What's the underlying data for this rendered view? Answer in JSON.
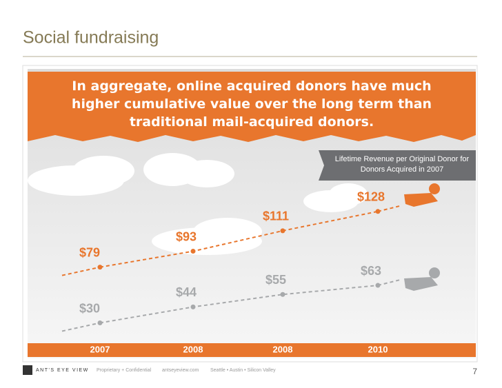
{
  "title": "Social fundraising",
  "chart_data": {
    "type": "line",
    "title": "In aggregate, online acquired donors have much higher cumulative value over the long term than traditional mail-acquired donors.",
    "legend_text": "Lifetime Revenue per Original Donor for Donors Acquired in 2007",
    "categories": [
      "2007",
      "2008",
      "2008",
      "2010"
    ],
    "series": [
      {
        "name": "Online acquired donors",
        "color": "#e8762d",
        "values": [
          79,
          93,
          111,
          128
        ],
        "value_labels": [
          "$79",
          "$93",
          "$111",
          "$128"
        ]
      },
      {
        "name": "Mail-acquired donors",
        "color": "#a7a9ab",
        "values": [
          30,
          44,
          55,
          63
        ],
        "value_labels": [
          "$30",
          "$44",
          "$55",
          "$63"
        ]
      }
    ]
  },
  "footer": {
    "brand": "ANT'S EYE VIEW",
    "confidential": "Proprietary + Confidential",
    "site": "antseyeview.com",
    "offices": "Seattle • Austin • Silicon Valley",
    "page": "7"
  }
}
